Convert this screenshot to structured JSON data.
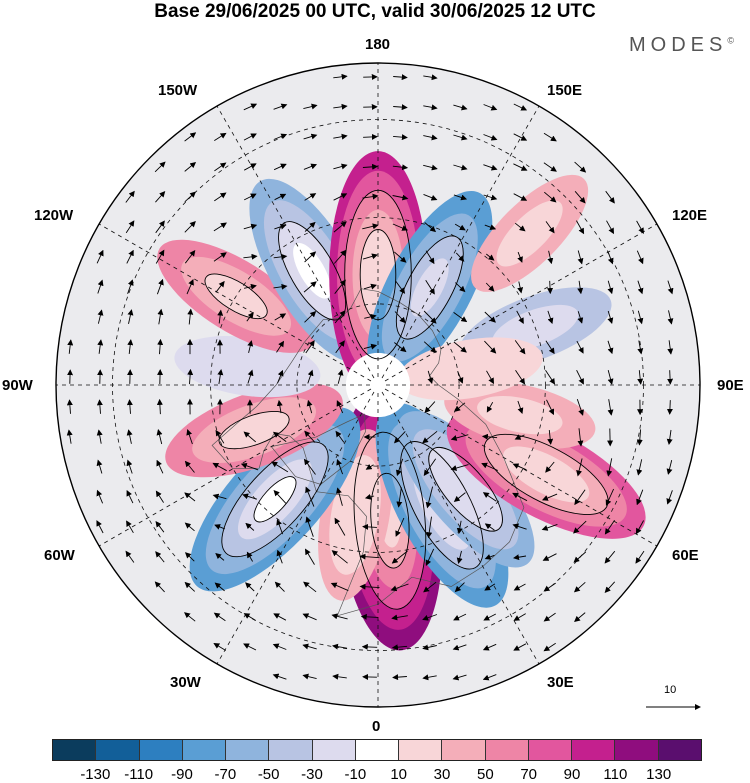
{
  "title": "Base 29/06/2025 00 UTC, valid 30/06/2025 12 UTC",
  "brand": {
    "name": "MODES",
    "mark": "©"
  },
  "map": {
    "projection": "north polar stereographic",
    "longitude_labels": [
      "180",
      "150E",
      "120E",
      "90E",
      "60E",
      "30E",
      "0",
      "30W",
      "60W",
      "90W",
      "120W",
      "150W"
    ],
    "reference_vector": {
      "label": "10"
    }
  },
  "colorbar": {
    "colors": [
      "#0b3c5d",
      "#125f99",
      "#2d7fc0",
      "#5a9ed4",
      "#8fb4dd",
      "#b8c4e3",
      "#dddbee",
      "#ffffff",
      "#f8d6d8",
      "#f4aeb9",
      "#ee85a6",
      "#e2569e",
      "#c4208e",
      "#8f0d7e",
      "#5a0e6e"
    ],
    "tick_labels": [
      "-130",
      "-110",
      "-90",
      "-70",
      "-50",
      "-30",
      "-10",
      "10",
      "30",
      "50",
      "70",
      "90",
      "110",
      "130"
    ]
  },
  "anomalies": [
    {
      "lon": 5,
      "lat": 57,
      "value": 110
    },
    {
      "lon": 350,
      "lat": 58,
      "value": 45
    },
    {
      "lon": 28,
      "lat": 57,
      "value": -85
    },
    {
      "lon": 40,
      "lat": 57,
      "value": -60
    },
    {
      "lon": 318,
      "lat": 53,
      "value": -90
    },
    {
      "lon": 290,
      "lat": 58,
      "value": 55
    },
    {
      "lon": 262,
      "lat": 58,
      "value": -25
    },
    {
      "lon": 238,
      "lat": 50,
      "value": 50
    },
    {
      "lon": 210,
      "lat": 58,
      "value": -70
    },
    {
      "lon": 180,
      "lat": 63,
      "value": 100
    },
    {
      "lon": 152,
      "lat": 63,
      "value": -75
    },
    {
      "lon": 110,
      "lat": 50,
      "value": -35
    },
    {
      "lon": 62,
      "lat": 45,
      "value": 80
    },
    {
      "lon": 78,
      "lat": 55,
      "value": 30
    },
    {
      "lon": 100,
      "lat": 67,
      "value": 25
    },
    {
      "lon": 135,
      "lat": 40,
      "value": 30
    }
  ]
}
